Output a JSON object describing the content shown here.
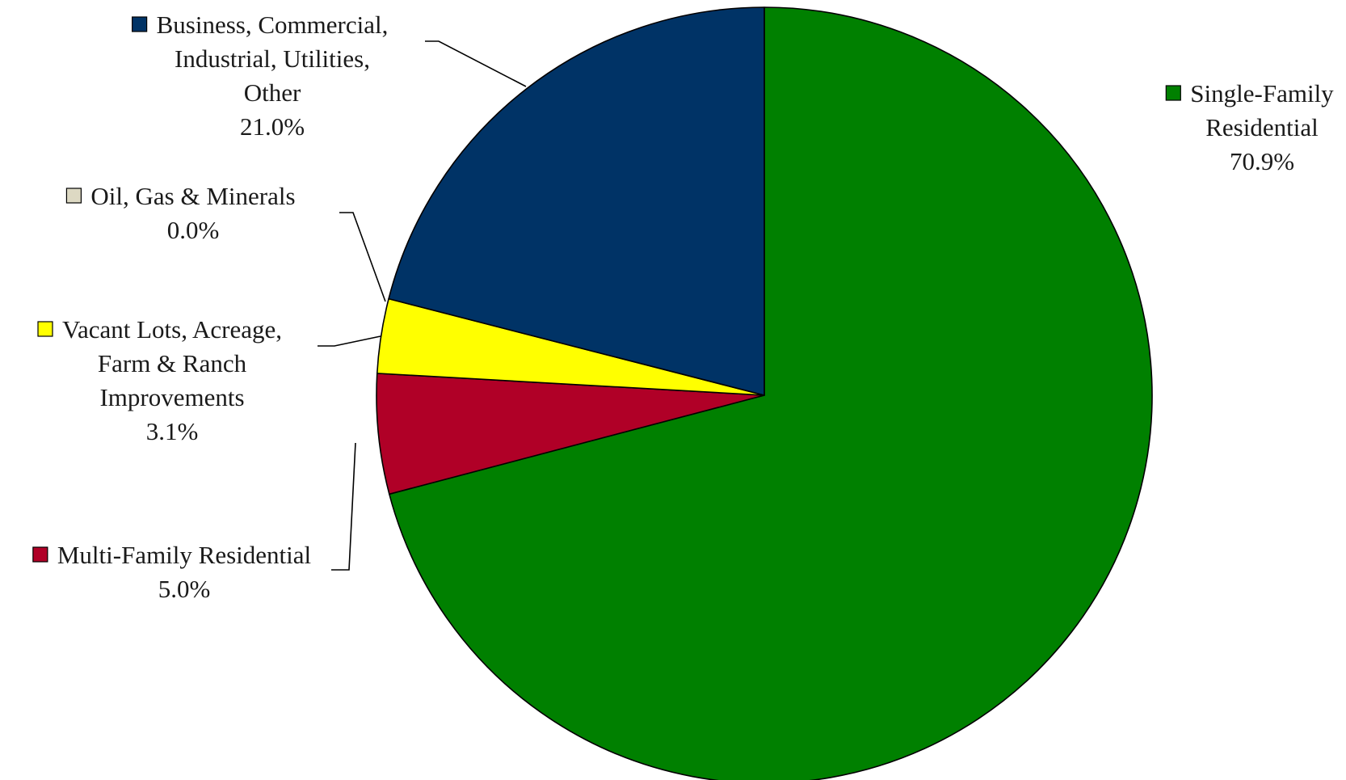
{
  "chart_data": {
    "type": "pie",
    "title": "",
    "start_angle_deg": 0,
    "direction": "clockwise",
    "slices": [
      {
        "key": "single_family",
        "label_lines": [
          "Single-Family",
          "Residential"
        ],
        "value": 70.9,
        "value_label": "70.9%",
        "color": "#008000"
      },
      {
        "key": "multi_family",
        "label_lines": [
          "Multi-Family Residential"
        ],
        "value": 5.0,
        "value_label": "5.0%",
        "color": "#B00027"
      },
      {
        "key": "vacant_lots",
        "label_lines": [
          "Vacant Lots, Acreage,",
          "Farm & Ranch",
          "Improvements"
        ],
        "value": 3.1,
        "value_label": "3.1%",
        "color": "#FFFF00"
      },
      {
        "key": "oil_gas",
        "label_lines": [
          "Oil, Gas & Minerals"
        ],
        "value": 0.0,
        "value_label": "0.0%",
        "color": "#DDD9C3"
      },
      {
        "key": "business",
        "label_lines": [
          "Business, Commercial,",
          "Industrial, Utilities,",
          "Other"
        ],
        "value": 21.0,
        "value_label": "21.0%",
        "color": "#003366"
      }
    ]
  }
}
